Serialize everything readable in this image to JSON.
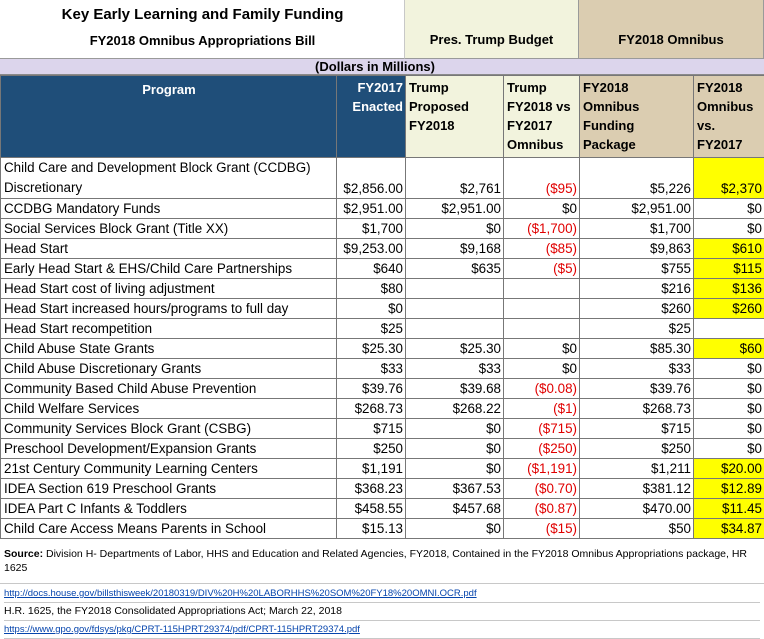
{
  "header": {
    "title_line1": "Key Early Learning and Family Funding",
    "title_line2": "FY2018 Omnibus Appropriations Bill",
    "pres_budget": "Pres. Trump Budget",
    "omnibus": "FY2018 Omnibus",
    "dollars": "(Dollars in Millions)"
  },
  "columns": {
    "program": "Program",
    "fy2017": [
      "FY2017",
      "Enacted"
    ],
    "trump_proposed": [
      "Trump",
      "Proposed",
      "FY2018"
    ],
    "trump_vs": [
      "Trump",
      "FY2018 vs",
      "FY2017",
      "Omnibus"
    ],
    "omnibus_pkg": [
      "FY2018",
      "Omnibus",
      "Funding",
      "Package"
    ],
    "omnibus_vs": [
      "FY2018",
      "Omnibus",
      "vs.",
      "FY2017"
    ]
  },
  "rows": [
    {
      "program": [
        "Child Care and Development Block Grant (CCDBG)",
        "Discretionary"
      ],
      "fy2017": "$2,856.00",
      "trump": "$2,761",
      "trump_vs": "($95)",
      "trump_vs_red": true,
      "omni": "$5,226",
      "omni_vs": "$2,370",
      "highlight": true,
      "indent": false,
      "tall": true
    },
    {
      "program": [
        "CCDBG Mandatory Funds"
      ],
      "fy2017": "$2,951.00",
      "trump": "$2,951.00",
      "trump_vs": "$0",
      "trump_vs_red": false,
      "omni": "$2,951.00",
      "omni_vs": "$0",
      "highlight": false,
      "indent": false
    },
    {
      "program": [
        "Social Services Block Grant (Title XX)"
      ],
      "fy2017": "$1,700",
      "trump": "$0",
      "trump_vs": "($1,700)",
      "trump_vs_red": true,
      "omni": "$1,700",
      "omni_vs": "$0",
      "highlight": false,
      "indent": false
    },
    {
      "program": [
        "Head Start"
      ],
      "fy2017": "$9,253.00",
      "trump": "$9,168",
      "trump_vs": "($85)",
      "trump_vs_red": true,
      "omni": "$9,863",
      "omni_vs": "$610",
      "highlight": true,
      "indent": false
    },
    {
      "program": [
        "Early Head Start & EHS/Child Care Partnerships"
      ],
      "fy2017": "$640",
      "trump": "$635",
      "trump_vs": "($5)",
      "trump_vs_red": true,
      "omni": "$755",
      "omni_vs": "$115",
      "highlight": true,
      "indent": true
    },
    {
      "program": [
        "Head Start cost of living adjustment"
      ],
      "fy2017": "$80",
      "trump": "",
      "trump_vs": "",
      "trump_vs_red": false,
      "omni": "$216",
      "omni_vs": "$136",
      "highlight": true,
      "indent": true
    },
    {
      "program": [
        "Head Start increased hours/programs to full day"
      ],
      "fy2017": "$0",
      "trump": "",
      "trump_vs": "",
      "trump_vs_red": false,
      "omni": "$260",
      "omni_vs": "$260",
      "highlight": true,
      "indent": true
    },
    {
      "program": [
        "Head Start recompetition"
      ],
      "fy2017": "$25",
      "trump": "",
      "trump_vs": "",
      "trump_vs_red": false,
      "omni": "$25",
      "omni_vs": "",
      "highlight": false,
      "indent": true
    },
    {
      "program": [
        "Child Abuse State Grants"
      ],
      "fy2017": "$25.30",
      "trump": "$25.30",
      "trump_vs": "$0",
      "trump_vs_red": false,
      "omni": "$85.30",
      "omni_vs": "$60",
      "highlight": true,
      "indent": false
    },
    {
      "program": [
        "Child Abuse Discretionary Grants"
      ],
      "fy2017": "$33",
      "trump": "$33",
      "trump_vs": "$0",
      "trump_vs_red": false,
      "omni": "$33",
      "omni_vs": "$0",
      "highlight": false,
      "indent": false
    },
    {
      "program": [
        "Community Based Child Abuse Prevention"
      ],
      "fy2017": "$39.76",
      "trump": "$39.68",
      "trump_vs": "($0.08)",
      "trump_vs_red": true,
      "omni": "$39.76",
      "omni_vs": "$0",
      "highlight": false,
      "indent": false
    },
    {
      "program": [
        "Child Welfare Services"
      ],
      "fy2017": "$268.73",
      "trump": "$268.22",
      "trump_vs": "($1)",
      "trump_vs_red": true,
      "omni": "$268.73",
      "omni_vs": "$0",
      "highlight": false,
      "indent": false
    },
    {
      "program": [
        "Community Services Block Grant (CSBG)"
      ],
      "fy2017": "$715",
      "trump": "$0",
      "trump_vs": "($715)",
      "trump_vs_red": true,
      "omni": "$715",
      "omni_vs": "$0",
      "highlight": false,
      "indent": false
    },
    {
      "program": [
        "Preschool Development/Expansion Grants"
      ],
      "fy2017": "$250",
      "trump": "$0",
      "trump_vs": "($250)",
      "trump_vs_red": true,
      "omni": "$250",
      "omni_vs": "$0",
      "highlight": false,
      "indent": false
    },
    {
      "program": [
        "21st Century Community Learning Centers"
      ],
      "fy2017": "$1,191",
      "trump": "$0",
      "trump_vs": "($1,191)",
      "trump_vs_red": true,
      "omni": "$1,211",
      "omni_vs": "$20.00",
      "highlight": true,
      "indent": false
    },
    {
      "program": [
        "IDEA Section 619 Preschool Grants"
      ],
      "fy2017": "$368.23",
      "trump": "$367.53",
      "trump_vs": "($0.70)",
      "trump_vs_red": true,
      "omni": "$381.12",
      "omni_vs": "$12.89",
      "highlight": true,
      "indent": false
    },
    {
      "program": [
        "IDEA Part C Infants & Toddlers"
      ],
      "fy2017": "$458.55",
      "trump": "$457.68",
      "trump_vs": "($0.87)",
      "trump_vs_red": true,
      "omni": "$470.00",
      "omni_vs": "$11.45",
      "highlight": true,
      "indent": false
    },
    {
      "program": [
        "Child Care Access Means Parents in School"
      ],
      "fy2017": "$15.13",
      "trump": "$0",
      "trump_vs": "($15)",
      "trump_vs_red": true,
      "omni": "$50",
      "omni_vs": "$34.87",
      "highlight": true,
      "indent": false
    }
  ],
  "footer": {
    "source_label": "Source:",
    "source_text": " Division H- Departments of Labor, HHS and Education and Related Agencies, FY2018, Contained in the FY2018 Omnibus Appropriations package, HR 1625",
    "link1": "http://docs.house.gov/billsthisweek/20180319/DIV%20H%20LABORHHS%20SOM%20FY18%20OMNI.OCR.pdf",
    "line2": "H.R. 1625, the FY2018 Consolidated Appropriations Act; March 22, 2018",
    "link2": "https://www.gpo.gov/fdsys/pkg/CPRT-115HPRT29374/pdf/CPRT-115HPRT29374.pdf"
  },
  "colors": {
    "header_blue": "#1f4e79",
    "pres_bg": "#f2f3dd",
    "omni_bg": "#dbcdb1",
    "dollars_bg": "#dcd5ec",
    "highlight": "#ffff00",
    "negative": "#e00000"
  }
}
